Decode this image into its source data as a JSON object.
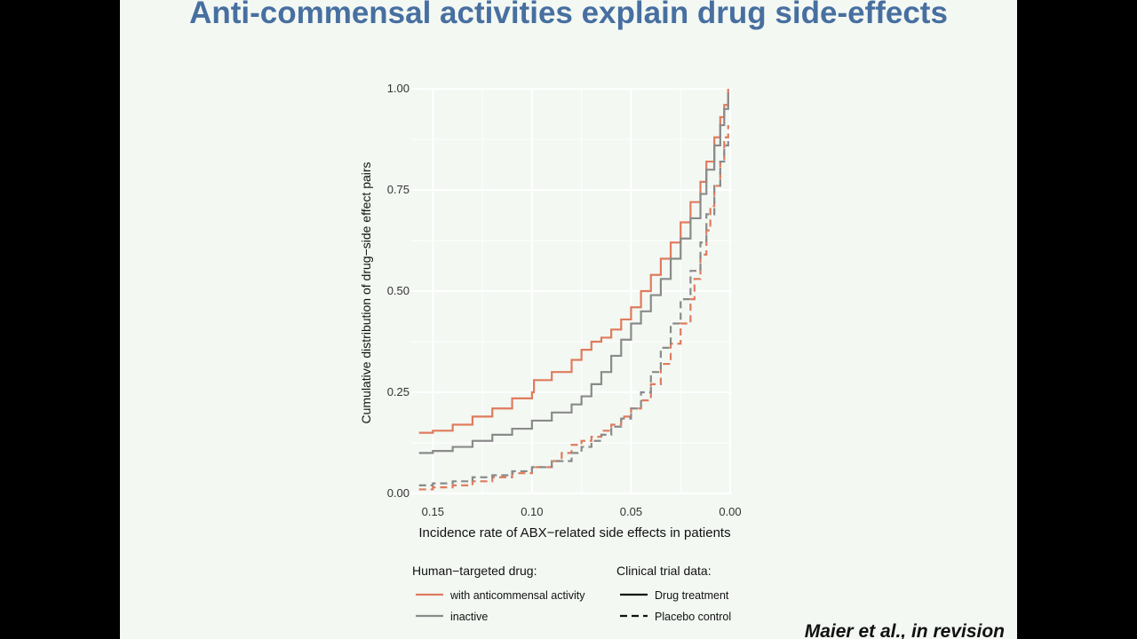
{
  "slide": {
    "title": "Anti-commensal activities explain drug side-effects",
    "citation": "Maier et al., in revision"
  },
  "colors": {
    "background": "#f3f8f3",
    "title": "#476fa0",
    "anticommensal": "#e07b5d",
    "inactive": "#8a8a8a",
    "grid": "#ffffff"
  },
  "chart_data": {
    "type": "line",
    "xlabel": "Incidence rate of ABX−related side effects in patients",
    "ylabel": "Cumulative distribution of drug−side effect pairs",
    "xlim": [
      0.16,
      0.0
    ],
    "x_reversed": true,
    "ylim": [
      0,
      1
    ],
    "xticks": [
      0.15,
      0.1,
      0.05,
      0.0
    ],
    "xtick_labels": [
      "0.15",
      "0.10",
      "0.05",
      "0.00"
    ],
    "yticks": [
      0,
      0.25,
      0.5,
      0.75,
      1.0
    ],
    "ytick_labels": [
      "0.00",
      "0.25",
      "0.50",
      "0.75",
      "1.00"
    ],
    "grid": true,
    "step": true,
    "legend": {
      "placement": "bottom",
      "groups": [
        {
          "title": "Human−targeted drug:",
          "entries": [
            {
              "label": "with anticommensal activity",
              "color": "#e07b5d",
              "dash": "solid"
            },
            {
              "label": "inactive",
              "color": "#8a8a8a",
              "dash": "solid"
            }
          ]
        },
        {
          "title": "Clinical trial data:",
          "entries": [
            {
              "label": "Drug treatment",
              "color": "#111111",
              "dash": "solid"
            },
            {
              "label": "Placebo control",
              "color": "#111111",
              "dash": "dashed"
            }
          ]
        }
      ]
    },
    "series": [
      {
        "name": "with anticommensal activity – Drug treatment",
        "color": "#e07b5d",
        "dash": "solid",
        "x": [
          0.157,
          0.15,
          0.14,
          0.13,
          0.12,
          0.11,
          0.1,
          0.099,
          0.09,
          0.08,
          0.075,
          0.07,
          0.065,
          0.06,
          0.055,
          0.05,
          0.045,
          0.04,
          0.035,
          0.03,
          0.025,
          0.02,
          0.015,
          0.012,
          0.008,
          0.005,
          0.003,
          0.001
        ],
        "y": [
          0.15,
          0.155,
          0.17,
          0.19,
          0.21,
          0.235,
          0.25,
          0.28,
          0.3,
          0.33,
          0.355,
          0.375,
          0.385,
          0.405,
          0.43,
          0.46,
          0.5,
          0.54,
          0.58,
          0.62,
          0.67,
          0.72,
          0.77,
          0.82,
          0.88,
          0.93,
          0.96,
          1.0
        ]
      },
      {
        "name": "inactive – Drug treatment",
        "color": "#8a8a8a",
        "dash": "solid",
        "x": [
          0.157,
          0.15,
          0.14,
          0.13,
          0.12,
          0.11,
          0.1,
          0.09,
          0.08,
          0.075,
          0.07,
          0.065,
          0.06,
          0.055,
          0.05,
          0.045,
          0.04,
          0.035,
          0.03,
          0.025,
          0.02,
          0.015,
          0.012,
          0.008,
          0.005,
          0.003,
          0.001
        ],
        "y": [
          0.1,
          0.105,
          0.115,
          0.13,
          0.145,
          0.16,
          0.18,
          0.2,
          0.22,
          0.24,
          0.27,
          0.3,
          0.34,
          0.38,
          0.42,
          0.45,
          0.49,
          0.53,
          0.58,
          0.63,
          0.68,
          0.74,
          0.8,
          0.86,
          0.91,
          0.95,
          0.99
        ]
      },
      {
        "name": "with anticommensal activity – Placebo control",
        "color": "#e07b5d",
        "dash": "dashed",
        "x": [
          0.157,
          0.15,
          0.14,
          0.13,
          0.12,
          0.11,
          0.1,
          0.09,
          0.085,
          0.08,
          0.075,
          0.07,
          0.065,
          0.06,
          0.055,
          0.05,
          0.045,
          0.04,
          0.035,
          0.03,
          0.025,
          0.02,
          0.018,
          0.015,
          0.012,
          0.01,
          0.008,
          0.005,
          0.003,
          0.001
        ],
        "y": [
          0.01,
          0.015,
          0.02,
          0.03,
          0.04,
          0.05,
          0.065,
          0.08,
          0.1,
          0.12,
          0.13,
          0.14,
          0.155,
          0.17,
          0.19,
          0.21,
          0.23,
          0.27,
          0.32,
          0.37,
          0.42,
          0.48,
          0.53,
          0.59,
          0.65,
          0.71,
          0.76,
          0.82,
          0.88,
          0.91
        ]
      },
      {
        "name": "inactive – Placebo control",
        "color": "#8a8a8a",
        "dash": "dashed",
        "x": [
          0.157,
          0.15,
          0.14,
          0.13,
          0.12,
          0.11,
          0.1,
          0.09,
          0.08,
          0.075,
          0.07,
          0.065,
          0.06,
          0.055,
          0.05,
          0.045,
          0.04,
          0.035,
          0.03,
          0.025,
          0.02,
          0.015,
          0.012,
          0.008,
          0.005,
          0.003,
          0.001
        ],
        "y": [
          0.02,
          0.025,
          0.03,
          0.04,
          0.045,
          0.055,
          0.065,
          0.08,
          0.1,
          0.115,
          0.13,
          0.145,
          0.165,
          0.185,
          0.21,
          0.25,
          0.3,
          0.36,
          0.42,
          0.48,
          0.55,
          0.62,
          0.69,
          0.76,
          0.82,
          0.86,
          0.88
        ]
      }
    ]
  }
}
